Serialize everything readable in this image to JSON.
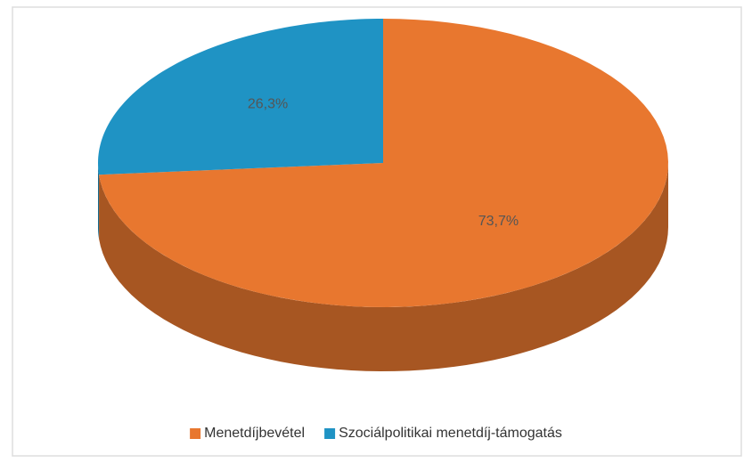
{
  "chart_data": {
    "type": "pie3d",
    "categories": [
      "Menetdíjbevétel",
      "Szociálpolitikai menetdíj-támogatás"
    ],
    "values": [
      73.7,
      26.3
    ],
    "value_labels": [
      "73,7%",
      "26,3%"
    ],
    "colors": [
      "#e8772f",
      "#1f93c4"
    ],
    "legend": "bottom"
  }
}
